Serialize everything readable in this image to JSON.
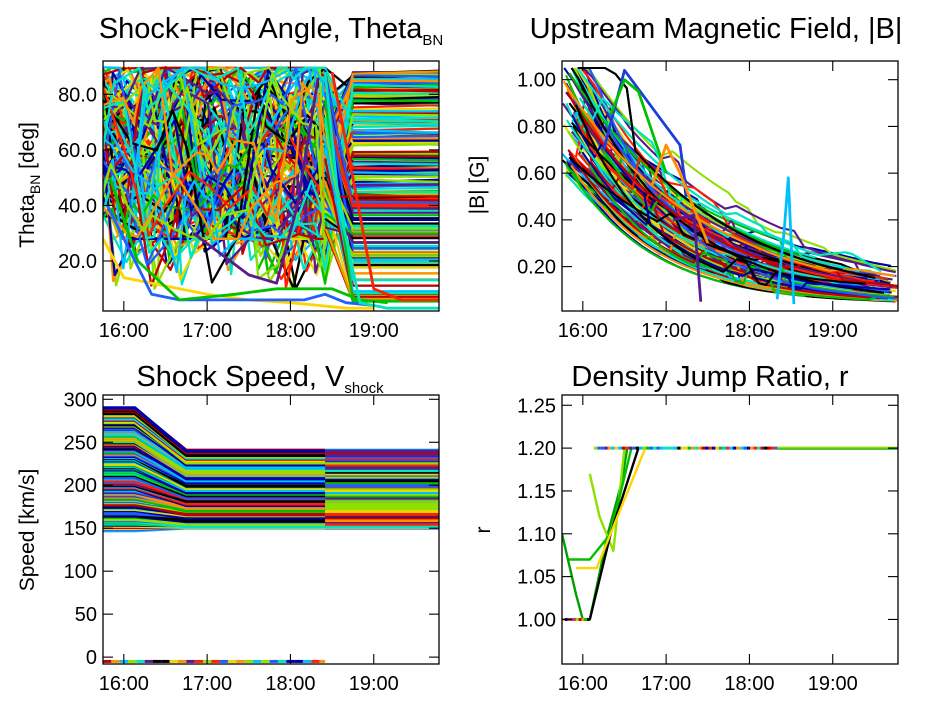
{
  "figure": {
    "background": "#ffffff"
  },
  "chart_data": [
    {
      "type": "line",
      "title": "Shock-Field Angle, Theta",
      "title_sub": "BN",
      "ylabel": "Theta",
      "ylabel_sub": "BN",
      "ylabel_suffix": " [deg]",
      "xlim": [
        "15:45",
        "19:47"
      ],
      "ylim": [
        2,
        92
      ],
      "xticks": [
        "16:00",
        "17:00",
        "18:00",
        "19:00"
      ],
      "yticks": [
        {
          "value": 20,
          "label": "20.0"
        },
        {
          "value": 40,
          "label": "40.0"
        },
        {
          "value": 60,
          "label": "60.0"
        },
        {
          "value": 80,
          "label": "80.0"
        }
      ],
      "palette": [
        "#0000aa",
        "#1e5cff",
        "#00bfff",
        "#00e5c0",
        "#00c000",
        "#8ee000",
        "#e8d800",
        "#ff9000",
        "#ff2000",
        "#c00000",
        "#000000",
        "#5a1a8c"
      ],
      "series": [
        {
          "color": "#ffd400",
          "x": [
            "15:45",
            "16:00",
            "16:20",
            "16:40",
            "17:00",
            "17:30",
            "18:00",
            "18:20",
            "18:40",
            "19:00"
          ],
          "y": [
            28,
            14,
            12,
            10,
            8,
            6,
            5,
            4,
            3,
            3
          ]
        },
        {
          "color": "#2060ff",
          "x": [
            "15:48",
            "16:20",
            "16:40",
            "17:10",
            "17:40",
            "18:10",
            "18:25",
            "18:40",
            "19:00"
          ],
          "y": [
            40,
            8,
            6,
            6,
            6,
            6,
            8,
            5,
            4
          ]
        },
        {
          "color": "#00c000",
          "x": [
            "15:50",
            "16:10",
            "16:40",
            "17:20",
            "17:50",
            "18:20",
            "18:30",
            "18:50",
            "19:10"
          ],
          "y": [
            50,
            20,
            6,
            8,
            10,
            10,
            10,
            6,
            5
          ]
        },
        {
          "color": "#5a1a8c",
          "x": [
            "16:50",
            "17:30",
            "17:50",
            "18:05",
            "18:20"
          ],
          "y": [
            30,
            15,
            12,
            40,
            86
          ]
        },
        {
          "color": "#00e5c0",
          "x": [
            "18:25",
            "18:35",
            "18:50",
            "19:10",
            "19:47"
          ],
          "y": [
            88,
            40,
            5,
            3,
            3
          ]
        },
        {
          "color": "#ff2000",
          "x": [
            "18:30",
            "18:45",
            "19:00",
            "19:20",
            "19:47"
          ],
          "y": [
            88,
            50,
            10,
            6,
            6
          ]
        }
      ]
    },
    {
      "type": "line",
      "title": "Upstream Magnetic Field, |B|",
      "ylabel": "|B| [G]",
      "xlim": [
        "15:45",
        "19:47"
      ],
      "ylim": [
        0.01,
        1.08
      ],
      "xticks": [
        "16:00",
        "17:00",
        "18:00",
        "19:00"
      ],
      "yticks": [
        {
          "value": 0.2,
          "label": "0.20"
        },
        {
          "value": 0.4,
          "label": "0.40"
        },
        {
          "value": 0.6,
          "label": "0.60"
        },
        {
          "value": 0.8,
          "label": "0.80"
        },
        {
          "value": 1.0,
          "label": "1.00"
        }
      ],
      "palette": [
        "#0000aa",
        "#1e5cff",
        "#00bfff",
        "#00e5c0",
        "#00c000",
        "#8ee000",
        "#e8d800",
        "#ff9000",
        "#ff2000",
        "#c00000",
        "#000000",
        "#5a1a8c"
      ],
      "series": [
        {
          "color": "#1e3cdd",
          "x": [
            "16:15",
            "16:30",
            "17:00",
            "17:10",
            "17:15"
          ],
          "y": [
            0.7,
            1.04,
            0.8,
            0.72,
            0.5
          ]
        },
        {
          "color": "#00c000",
          "x": [
            "16:20",
            "16:30",
            "16:40",
            "17:00"
          ],
          "y": [
            0.85,
            1.0,
            0.95,
            0.6
          ]
        },
        {
          "color": "#00bfff",
          "x": [
            "18:20",
            "18:25",
            "18:28",
            "18:32"
          ],
          "y": [
            0.06,
            0.35,
            0.58,
            0.04
          ]
        },
        {
          "color": "#ff9000",
          "x": [
            "16:50",
            "17:00",
            "17:10",
            "17:30"
          ],
          "y": [
            0.55,
            0.72,
            0.6,
            0.3
          ]
        },
        {
          "color": "#5a1a8c",
          "x": [
            "17:05",
            "17:20",
            "17:25"
          ],
          "y": [
            0.4,
            0.42,
            0.05
          ]
        }
      ]
    },
    {
      "type": "line",
      "title": "Shock Speed, V",
      "title_sub": "shock",
      "ylabel": "Speed [km/s]",
      "xlim": [
        "15:45",
        "19:47"
      ],
      "ylim": [
        -8,
        305
      ],
      "xticks": [
        "16:00",
        "17:00",
        "18:00",
        "19:00"
      ],
      "yticks": [
        {
          "value": 0,
          "label": "0"
        },
        {
          "value": 50,
          "label": "50"
        },
        {
          "value": 100,
          "label": "100"
        },
        {
          "value": 150,
          "label": "150"
        },
        {
          "value": 200,
          "label": "200"
        },
        {
          "value": 250,
          "label": "250"
        },
        {
          "value": 300,
          "label": "300"
        }
      ],
      "palette": [
        "#0000aa",
        "#1e5cff",
        "#00bfff",
        "#00e5c0",
        "#00c000",
        "#8ee000",
        "#e8d800",
        "#ff9000",
        "#ff2000",
        "#c00000",
        "#000000",
        "#5a1a8c"
      ],
      "band_start_range": [
        147,
        290
      ],
      "band_end_range": [
        148,
        240
      ],
      "band_x": [
        "15:45",
        "16:08",
        "16:45",
        "18:25",
        "19:47"
      ],
      "zero_band_x": [
        "15:45",
        "18:25"
      ],
      "zero_band_y": -5
    },
    {
      "type": "line",
      "title": "Density Jump Ratio, r",
      "ylabel": "r",
      "xlim": [
        "15:45",
        "19:47"
      ],
      "ylim": [
        0.948,
        1.262
      ],
      "xticks": [
        "16:00",
        "17:00",
        "18:00",
        "19:00"
      ],
      "yticks": [
        {
          "value": 1.0,
          "label": "1.00"
        },
        {
          "value": 1.05,
          "label": "1.05"
        },
        {
          "value": 1.1,
          "label": "1.10"
        },
        {
          "value": 1.15,
          "label": "1.15"
        },
        {
          "value": 1.2,
          "label": "1.20"
        },
        {
          "value": 1.25,
          "label": "1.25"
        }
      ],
      "palette": [
        "#0000aa",
        "#1e5cff",
        "#00bfff",
        "#00e5c0",
        "#00c000",
        "#8ee000",
        "#e8d800",
        "#ff9000",
        "#ff2000",
        "#c00000",
        "#000000",
        "#5a1a8c"
      ],
      "plateau_y": 1.2,
      "plateau_x": [
        "16:08",
        "19:47"
      ],
      "base_y": 1.0,
      "base_x": [
        "15:45",
        "16:05"
      ],
      "series": [
        {
          "color": "#00a000",
          "x": [
            "15:45",
            "15:55",
            "16:00",
            "16:05",
            "16:18",
            "16:28",
            "16:32"
          ],
          "y": [
            1.1,
            1.03,
            1.0,
            1.0,
            1.1,
            1.16,
            1.2
          ]
        },
        {
          "color": "#8ee000",
          "x": [
            "16:05",
            "16:12",
            "16:22",
            "16:30"
          ],
          "y": [
            1.17,
            1.12,
            1.08,
            1.2
          ]
        },
        {
          "color": "#00c000",
          "x": [
            "15:50",
            "16:05",
            "16:20",
            "16:35"
          ],
          "y": [
            1.07,
            1.07,
            1.1,
            1.2
          ]
        },
        {
          "color": "#000000",
          "x": [
            "16:05",
            "16:20",
            "16:40"
          ],
          "y": [
            1.0,
            1.1,
            1.2
          ]
        },
        {
          "color": "#ffd400",
          "x": [
            "15:55",
            "16:10",
            "16:25",
            "16:45"
          ],
          "y": [
            1.06,
            1.06,
            1.12,
            1.2
          ]
        }
      ]
    }
  ]
}
